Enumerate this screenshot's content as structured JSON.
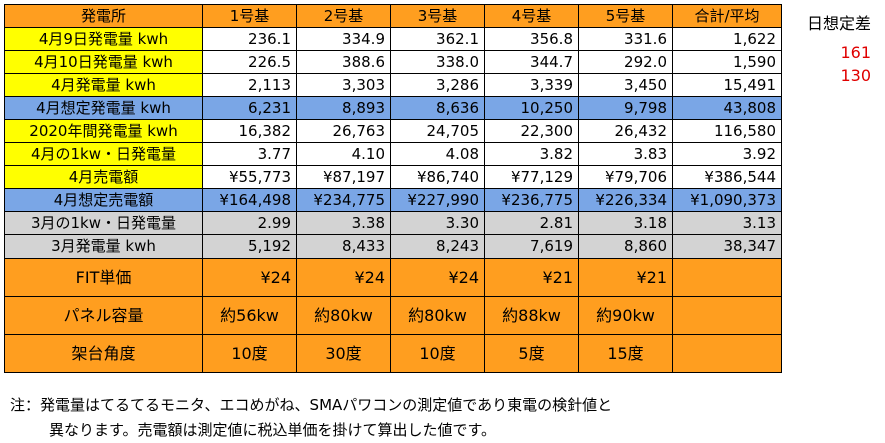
{
  "header": [
    "発電所",
    "1号基",
    "2号基",
    "3号基",
    "4号基",
    "5号基",
    "合計/平均"
  ],
  "rows": [
    {
      "label": "4月9日発電量 kwh",
      "values": [
        "236.1",
        "334.9",
        "362.1",
        "356.8",
        "331.6",
        "1,622"
      ]
    },
    {
      "label": "4月10日発電量 kwh",
      "values": [
        "226.5",
        "388.6",
        "338.0",
        "344.7",
        "292.0",
        "1,590"
      ]
    },
    {
      "label": "4月発電量 kwh",
      "values": [
        "2,113",
        "3,303",
        "3,286",
        "3,339",
        "3,450",
        "15,491"
      ]
    },
    {
      "label": "4月想定発電量 kwh",
      "values": [
        "6,231",
        "8,893",
        "8,636",
        "10,250",
        "9,798",
        "43,808"
      ]
    },
    {
      "label": "2020年間発電量 kwh",
      "values": [
        "16,382",
        "26,763",
        "24,705",
        "22,300",
        "26,432",
        "116,580"
      ]
    },
    {
      "label": "4月の1kw・日発電量",
      "values": [
        "3.77",
        "4.10",
        "4.08",
        "3.82",
        "3.83",
        "3.92"
      ]
    },
    {
      "label": "4月売電額",
      "values": [
        "¥55,773",
        "¥87,197",
        "¥86,740",
        "¥77,129",
        "¥79,706",
        "¥386,544"
      ]
    },
    {
      "label": "4月想定売電額",
      "values": [
        "¥164,498",
        "¥234,775",
        "¥227,990",
        "¥236,775",
        "¥226,334",
        "¥1,090,373"
      ]
    },
    {
      "label": "3月の1kw・日発電量",
      "values": [
        "2.99",
        "3.38",
        "3.30",
        "2.81",
        "3.18",
        "3.13"
      ]
    },
    {
      "label": "3月発電量 kwh",
      "values": [
        "5,192",
        "8,433",
        "8,243",
        "7,619",
        "8,860",
        "38,347"
      ]
    },
    {
      "label": "FIT単価",
      "values": [
        "¥24",
        "¥24",
        "¥24",
        "¥21",
        "¥21",
        ""
      ]
    },
    {
      "label": "パネル容量",
      "values": [
        "約56kw",
        "約80kw",
        "約80kw",
        "約88kw",
        "約90kw",
        ""
      ]
    },
    {
      "label": "架台角度",
      "values": [
        "10度",
        "30度",
        "10度",
        "5度",
        "15度",
        ""
      ]
    }
  ],
  "side": {
    "title": "日想定差",
    "values": [
      "161",
      "130"
    ]
  },
  "note": {
    "line1": "注：発電量はてるてるモニタ、エコめがね、SMAパワコンの測定値であり東電の検針値と",
    "line2": "異なります。売電額は測定値に税込単価を掛けて算出した値です。"
  },
  "colors": {
    "orange": "#ff9e1f",
    "yellow": "#ffff00",
    "blue": "#7aa6e6",
    "gray": "#d3d3d3",
    "red_text": "#e00000"
  }
}
